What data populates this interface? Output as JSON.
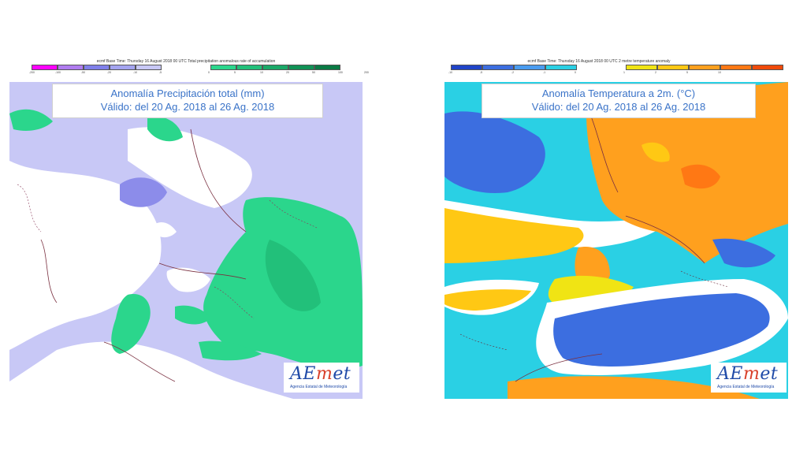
{
  "left_map": {
    "header": "ecmf  Base Time: Thursday 16 August 2018 00 UTC  Total precipitation anomalous rate of accumulation",
    "title_line1": "Anomalía Precipitación total (mm)",
    "title_line2": "Válido: del 20 Ag. 2018 al 26 Ag. 2018",
    "legend_colors": [
      "#ff00ff",
      "#b07cf0",
      "#8080ea",
      "#a4a4f0",
      "#c8c8f6",
      "#2bd68c",
      "#22c07a",
      "#1aa968",
      "#119256",
      "#0a7a44"
    ],
    "legend_ticks": [
      "-200",
      "-100",
      "-50",
      "-20",
      "-10",
      "-5",
      "0",
      "5",
      "10",
      "20",
      "50",
      "100",
      "200"
    ]
  },
  "right_map": {
    "header": "ecmf  Base Time: Thursday 16 August 2018 00 UTC  2 metre temperature anomaly",
    "title_line1": "Anomalía Temperatura a 2m. (°C)",
    "title_line2": "Válido: del 20 Ag. 2018 al 26 Ag. 2018",
    "legend_colors": [
      "#2044c8",
      "#3c6ee0",
      "#4a9cf0",
      "#2ad0e4",
      "#f0e414",
      "#ffc814",
      "#ffa01e",
      "#ff7814",
      "#f04a0a"
    ],
    "legend_ticks": [
      "-10",
      "-5",
      "-2",
      "-1",
      "0",
      "1",
      "2",
      "5",
      "10"
    ]
  },
  "logo": {
    "name_a": "AE",
    "name_m": "m",
    "name_e": "e",
    "name_t": "t",
    "subtitle": "Agencia Estatal de Meteorología"
  }
}
